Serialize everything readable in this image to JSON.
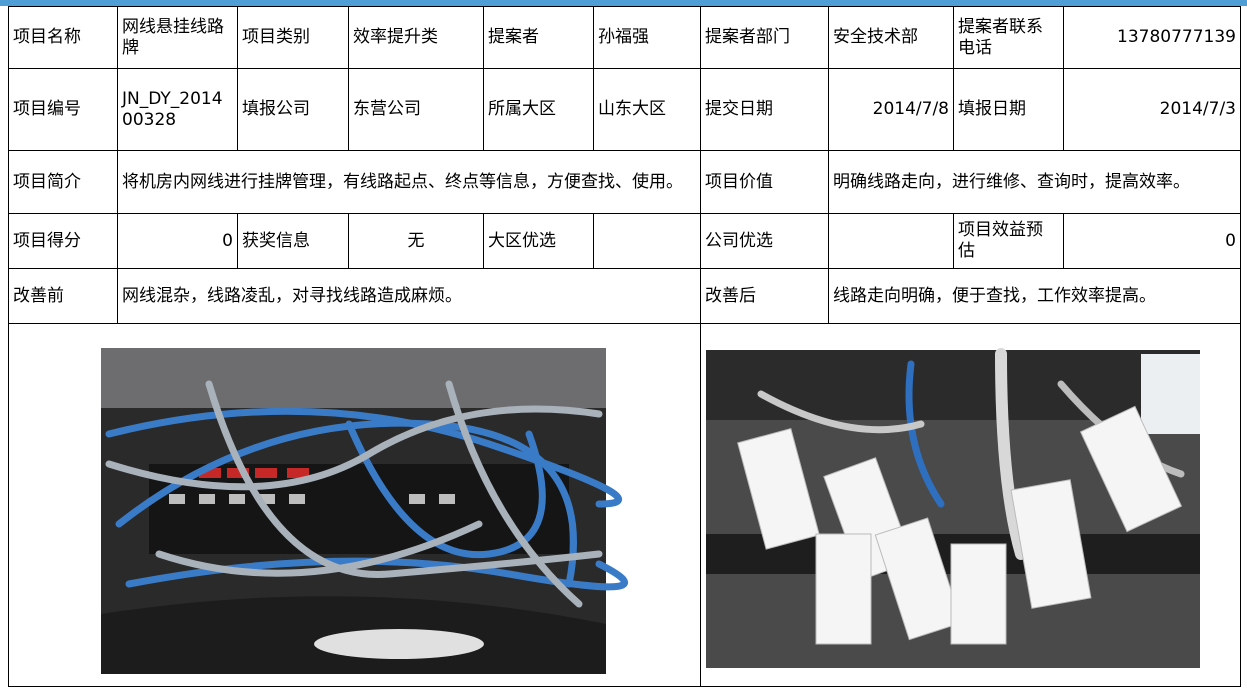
{
  "table": {
    "rows": [
      [
        "项目名称",
        "网线悬挂线路牌",
        "项目类别",
        "效率提升类",
        "提案者",
        "孙福强",
        "提案者部门",
        "安全技术部",
        "提案者联系电话",
        "13780777139"
      ],
      [
        "项目编号",
        "JN_DY_201400328",
        "填报公司",
        "东营公司",
        "所属大区",
        "山东大区",
        "提交日期",
        "2014/7/8",
        "填报日期",
        "2014/7/3"
      ],
      [
        "项目简介",
        "将机房内网线进行挂牌管理，有线路起点、终点等信息，方便查找、使用。",
        "项目价值",
        "明确线路走向，进行维修、查询时，提高效率。"
      ],
      [
        "项目得分",
        0,
        "获奖信息",
        "无",
        "大区优选",
        "公司优选",
        "项目效益预估",
        0
      ],
      [
        "改善前",
        "网线混杂，线路凌乱，对寻找线路造成麻烦。",
        "改善后",
        "线路走向明确，便于查找，工作效率提高。"
      ]
    ]
  }
}
